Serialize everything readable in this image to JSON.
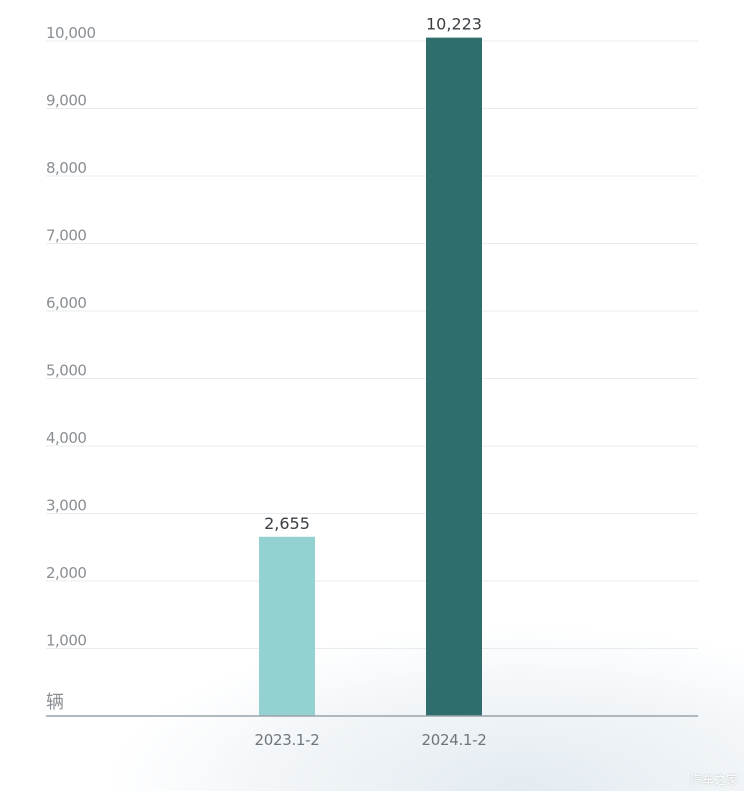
{
  "chart_data": {
    "type": "bar",
    "categories": [
      "2023.1-2",
      "2024.1-2"
    ],
    "values": [
      2655,
      10223
    ],
    "data_labels": [
      "2,655",
      "10,223"
    ],
    "bar_colors": [
      "#94d1d1",
      "#2f6e6c"
    ],
    "yticks": [
      1000,
      2000,
      3000,
      4000,
      5000,
      6000,
      7000,
      8000,
      9000,
      10000
    ],
    "ytick_labels": [
      "1,000",
      "2,000",
      "3,000",
      "4,000",
      "5,000",
      "6,000",
      "7,000",
      "8,000",
      "9,000",
      "10,000"
    ],
    "ylim": [
      0,
      10000
    ],
    "unit": "辆",
    "grid": true
  },
  "watermark": "汽车之家"
}
